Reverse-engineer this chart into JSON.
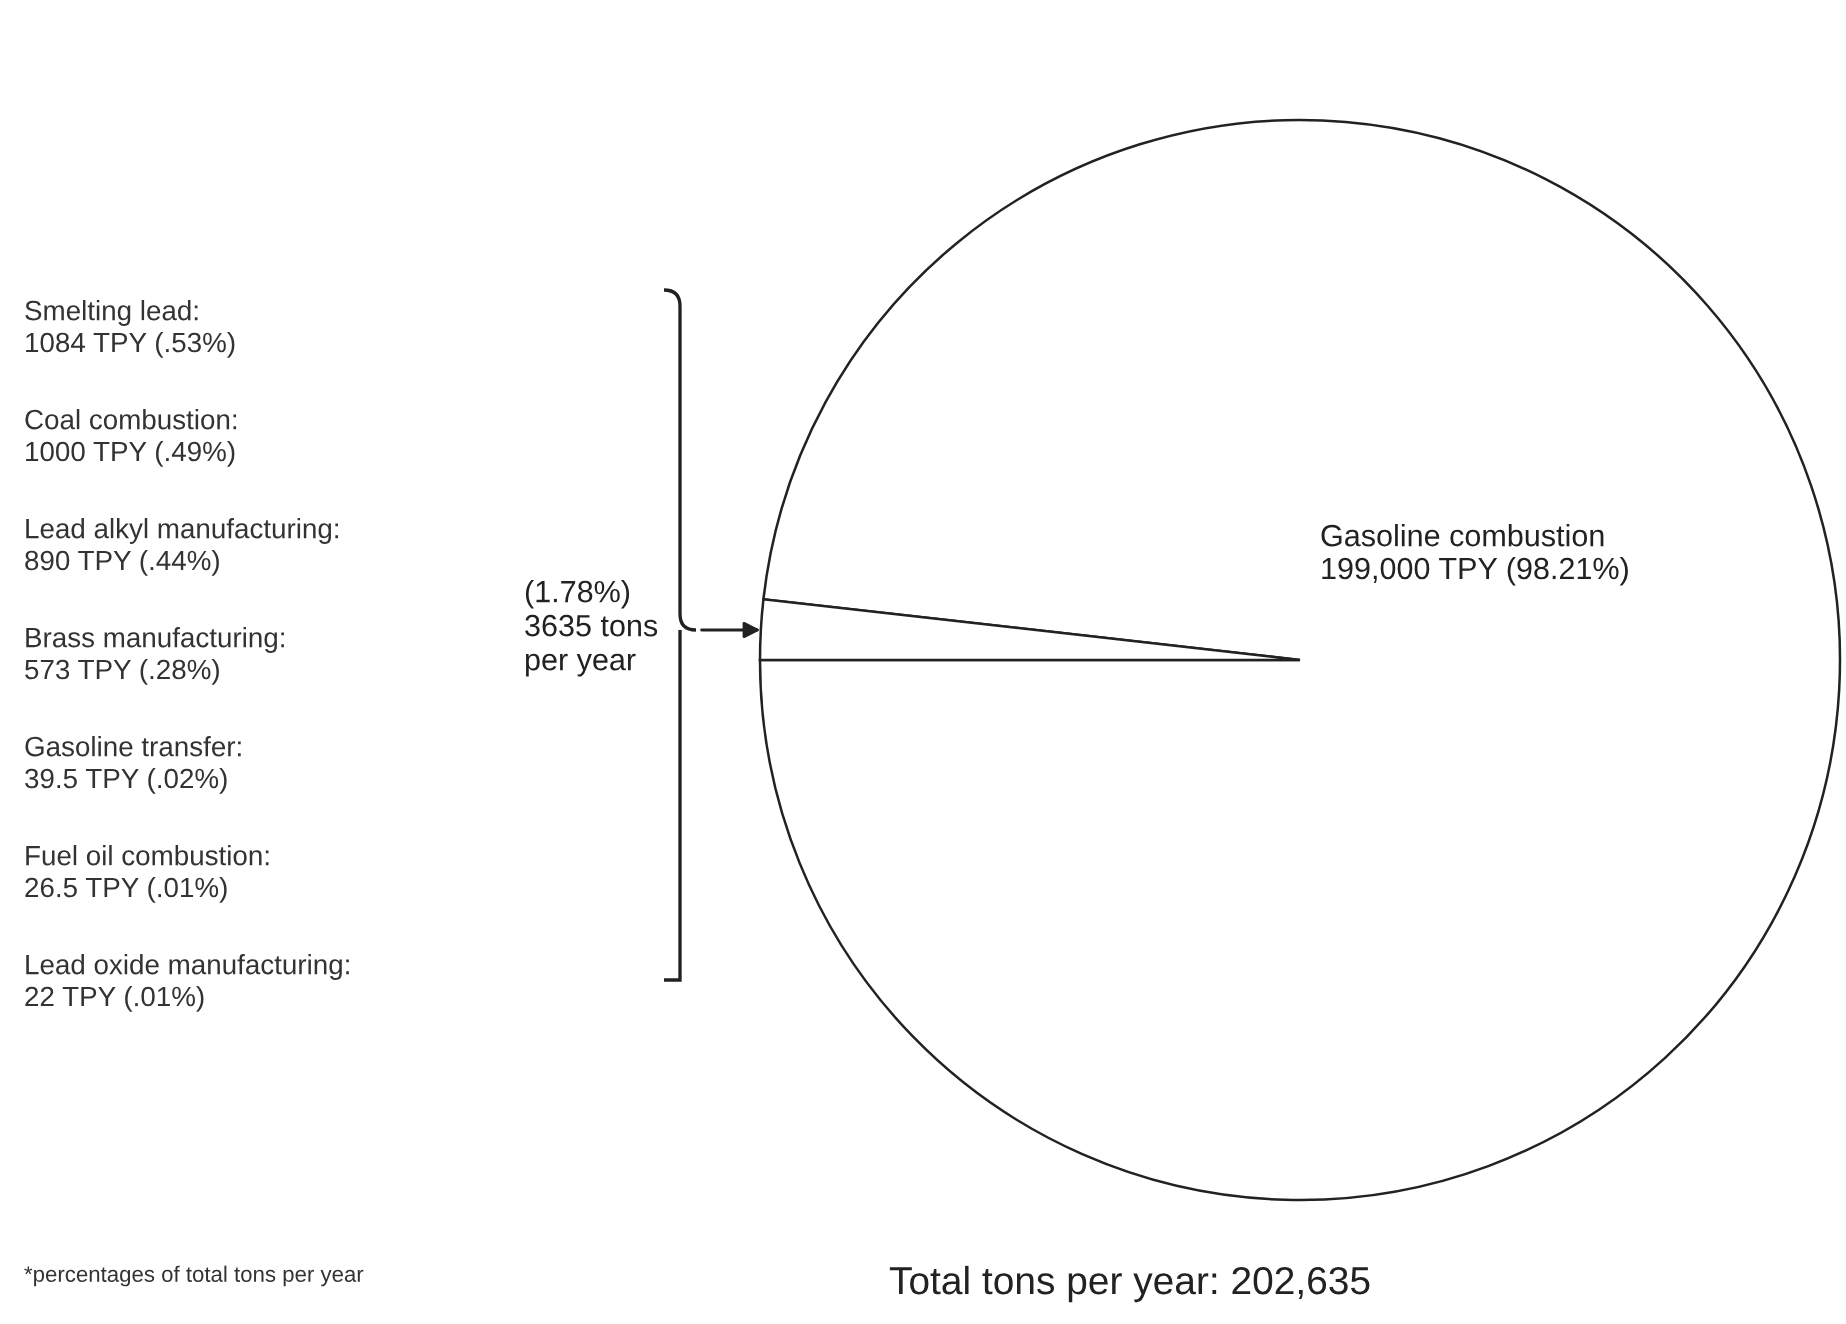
{
  "chart_data": {
    "type": "pie",
    "categories": [
      "Gasoline combustion",
      null
    ],
    "values": [
      199000,
      3635
    ],
    "value_labels": [
      "199,000 TPY (98.21%)",
      "(1.78%)\n3635 tons\nper year"
    ],
    "colors": [
      "#ffffff",
      "#ffffff"
    ],
    "annotations": [
      "Smelting lead:\n1084 TPY (.53%)",
      "Coal combustion:\n1000 TPY (.49%)",
      "Lead alkyl manufacturing:\n890 TPY (.44%)",
      "Brass manufacturing:\n573 TPY (.28%)",
      "Gasoline transfer:\n39.5 TPY (.02%)",
      "Fuel oil combustion:\n26.5 TPY (.01%)",
      "Lead oxide manufacturing:\n22 TPY (.01%)",
      "*percentages of total tons per year",
      "Total tons per year: 202,635"
    ]
  }
}
